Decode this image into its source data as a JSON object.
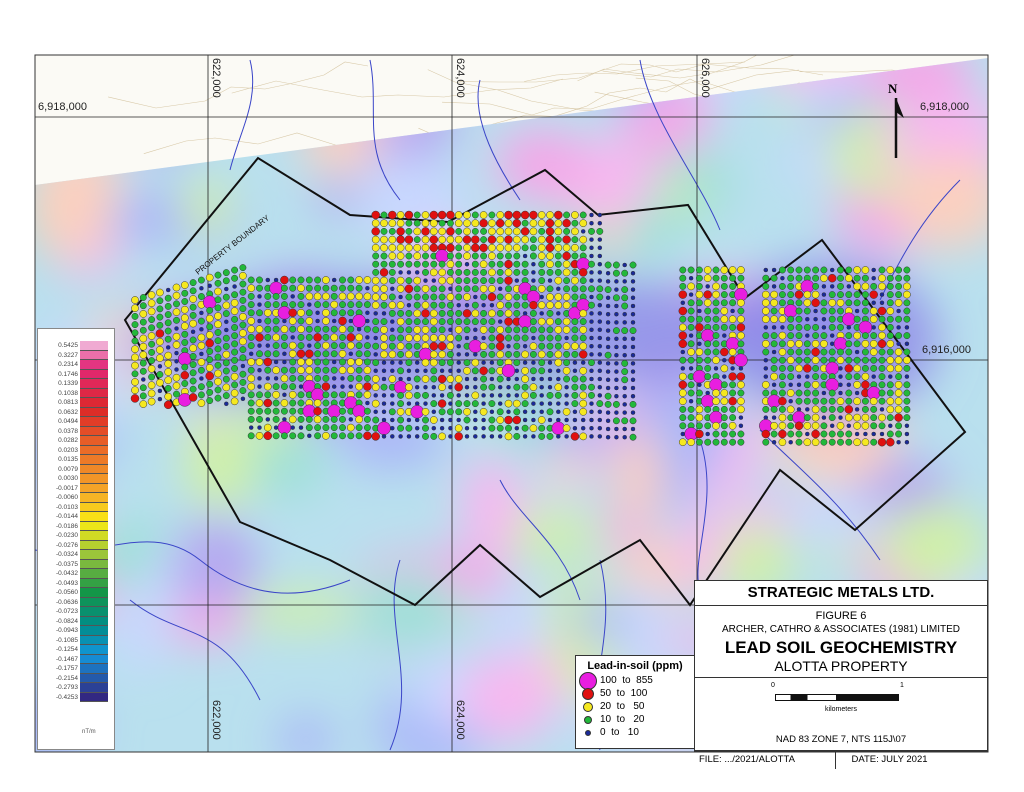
{
  "map": {
    "grid_labels": {
      "e622000": "622,000",
      "e624000": "624,000",
      "e626000": "626,000",
      "n6918000": "6,918,000",
      "n6916000": "6,916,000"
    },
    "north_label": "N",
    "boundary_label": "PROPERTY BOUNDARY"
  },
  "color_legend": {
    "values": [
      "0.5425",
      "0.3227",
      "0.2314",
      "0.1746",
      "0.1339",
      "0.1038",
      "0.0813",
      "0.0632",
      "0.0494",
      "0.0378",
      "0.0282",
      "0.0203",
      "0.0135",
      "0.0079",
      "0.0030",
      "-0.0017",
      "-0.0060",
      "-0.0103",
      "-0.0144",
      "-0.0186",
      "-0.0230",
      "-0.0276",
      "-0.0324",
      "-0.0375",
      "-0.0432",
      "-0.0493",
      "-0.0560",
      "-0.0636",
      "-0.0723",
      "-0.0824",
      "-0.0943",
      "-0.1085",
      "-0.1254",
      "-0.1467",
      "-0.1757",
      "-0.2154",
      "-0.2793",
      "-0.4253"
    ],
    "unit": "nT/m"
  },
  "soil_legend": {
    "title": "Lead-in-soil (ppm)",
    "classes": [
      {
        "range": "100  to  855",
        "color": "#e81ee0"
      },
      {
        "range": "50  to  100",
        "color": "#e01010"
      },
      {
        "range": "20  to   50",
        "color": "#f5e820"
      },
      {
        "range": "10  to   20",
        "color": "#22b83a"
      },
      {
        "range": "0  to   10",
        "color": "#1a2a9a"
      }
    ]
  },
  "title_block": {
    "company": "STRATEGIC METALS LTD.",
    "figure": "FIGURE 6",
    "firm": "ARCHER, CATHRO & ASSOCIATES (1981) LIMITED",
    "title": "LEAD SOIL GEOCHEMISTRY",
    "subtitle": "ALOTTA PROPERTY",
    "scale_min": "0",
    "scale_max": "1",
    "scale_unit": "kilometers",
    "projection": "NAD 83 ZONE 7, NTS 115J\\07",
    "file": "FILE: .../2021/ALOTTA",
    "date": "DATE: JULY 2021"
  }
}
